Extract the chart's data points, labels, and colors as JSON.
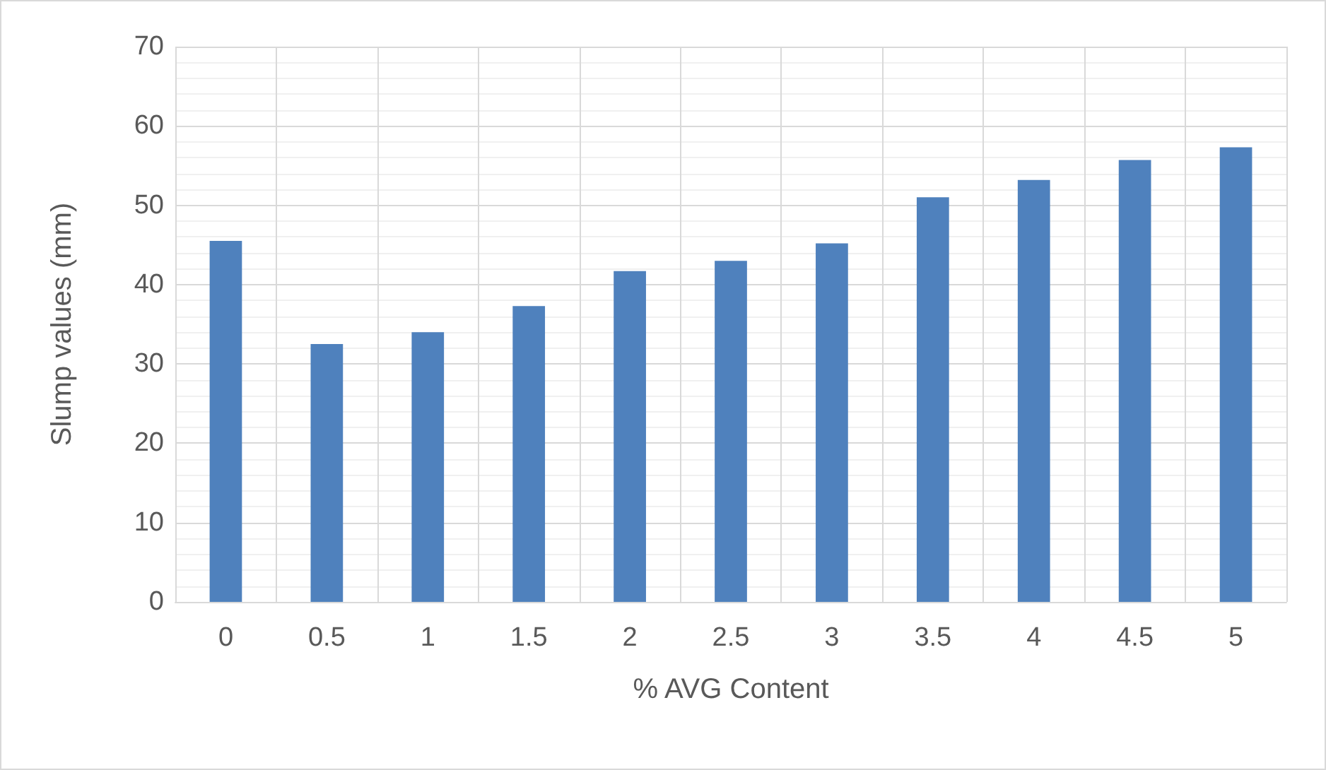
{
  "chart_data": {
    "type": "bar",
    "xlabel": "% AVG Content",
    "ylabel": "Slump values (mm)",
    "categories": [
      "0",
      "0.5",
      "1",
      "1.5",
      "2",
      "2.5",
      "3",
      "3.5",
      "4",
      "4.5",
      "5"
    ],
    "values": [
      45.5,
      32.5,
      34,
      37.3,
      41.7,
      43,
      45.2,
      51,
      53.2,
      55.7,
      57.3
    ],
    "color": "#4f81bd",
    "ylim": [
      0,
      70
    ],
    "yticks": [
      0,
      10,
      20,
      30,
      40,
      50,
      60,
      70
    ],
    "grid": true
  }
}
